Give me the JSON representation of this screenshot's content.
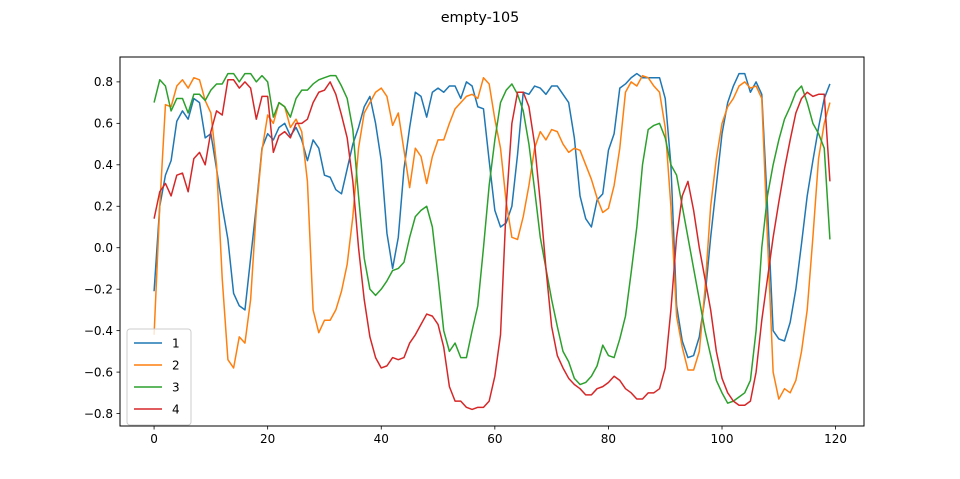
{
  "chart_data": {
    "type": "line",
    "title": "empty-105",
    "xlabel": "",
    "ylabel": "",
    "xlim": [
      -6,
      125
    ],
    "ylim": [
      -0.86,
      0.92
    ],
    "xticks": [
      0,
      20,
      40,
      60,
      80,
      100,
      120
    ],
    "xtick_labels": [
      "0",
      "20",
      "40",
      "60",
      "80",
      "100",
      "120"
    ],
    "yticks": [
      -0.8,
      -0.6,
      -0.4,
      -0.2,
      0.0,
      0.2,
      0.4,
      0.6,
      0.8
    ],
    "ytick_labels": [
      "−0.8",
      "−0.6",
      "−0.4",
      "−0.2",
      "0.0",
      "0.2",
      "0.4",
      "0.6",
      "0.8"
    ],
    "grid": false,
    "legend_position": "lower-left",
    "x": [
      0,
      1,
      2,
      3,
      4,
      5,
      6,
      7,
      8,
      9,
      10,
      11,
      12,
      13,
      14,
      15,
      16,
      17,
      18,
      19,
      20,
      21,
      22,
      23,
      24,
      25,
      26,
      27,
      28,
      29,
      30,
      31,
      32,
      33,
      34,
      35,
      36,
      37,
      38,
      39,
      40,
      41,
      42,
      43,
      44,
      45,
      46,
      47,
      48,
      49,
      50,
      51,
      52,
      53,
      54,
      55,
      56,
      57,
      58,
      59,
      60,
      61,
      62,
      63,
      64,
      65,
      66,
      67,
      68,
      69,
      70,
      71,
      72,
      73,
      74,
      75,
      76,
      77,
      78,
      79,
      80,
      81,
      82,
      83,
      84,
      85,
      86,
      87,
      88,
      89,
      90,
      91,
      92,
      93,
      94,
      95,
      96,
      97,
      98,
      99,
      100,
      101,
      102,
      103,
      104,
      105,
      106,
      107,
      108,
      109,
      110,
      111,
      112,
      113,
      114,
      115,
      116,
      117,
      118,
      119
    ],
    "series": [
      {
        "name": "1",
        "color": "#1f77b4",
        "values": [
          -0.21,
          0.2,
          0.35,
          0.42,
          0.61,
          0.66,
          0.62,
          0.72,
          0.7,
          0.53,
          0.55,
          0.38,
          0.2,
          0.04,
          -0.22,
          -0.28,
          -0.3,
          -0.05,
          0.2,
          0.48,
          0.55,
          0.52,
          0.58,
          0.6,
          0.54,
          0.58,
          0.52,
          0.42,
          0.52,
          0.48,
          0.35,
          0.34,
          0.28,
          0.26,
          0.38,
          0.5,
          0.58,
          0.68,
          0.73,
          0.6,
          0.42,
          0.07,
          -0.1,
          0.05,
          0.38,
          0.58,
          0.75,
          0.73,
          0.63,
          0.75,
          0.77,
          0.75,
          0.78,
          0.78,
          0.72,
          0.8,
          0.78,
          0.68,
          0.67,
          0.42,
          0.18,
          0.1,
          0.12,
          0.2,
          0.45,
          0.75,
          0.74,
          0.78,
          0.77,
          0.74,
          0.78,
          0.78,
          0.74,
          0.7,
          0.53,
          0.25,
          0.14,
          0.1,
          0.23,
          0.26,
          0.47,
          0.55,
          0.77,
          0.79,
          0.82,
          0.84,
          0.82,
          0.82,
          0.82,
          0.82,
          0.72,
          0.4,
          -0.28,
          -0.45,
          -0.53,
          -0.52,
          -0.43,
          -0.24,
          0.05,
          0.3,
          0.55,
          0.7,
          0.78,
          0.84,
          0.84,
          0.75,
          0.8,
          0.74,
          0.2,
          -0.4,
          -0.44,
          -0.45,
          -0.36,
          -0.2,
          0.02,
          0.25,
          0.42,
          0.58,
          0.72,
          0.79
        ]
      },
      {
        "name": "2",
        "color": "#ff7f0e",
        "values": [
          -0.42,
          0.2,
          0.69,
          0.68,
          0.78,
          0.81,
          0.77,
          0.82,
          0.81,
          0.71,
          0.65,
          0.4,
          -0.15,
          -0.54,
          -0.58,
          -0.43,
          -0.46,
          -0.25,
          0.18,
          0.47,
          0.64,
          0.6,
          0.7,
          0.68,
          0.58,
          0.62,
          0.56,
          0.32,
          -0.3,
          -0.41,
          -0.35,
          -0.35,
          -0.3,
          -0.21,
          -0.08,
          0.15,
          0.48,
          0.65,
          0.7,
          0.75,
          0.77,
          0.73,
          0.59,
          0.65,
          0.47,
          0.29,
          0.48,
          0.44,
          0.31,
          0.44,
          0.52,
          0.52,
          0.6,
          0.67,
          0.7,
          0.73,
          0.74,
          0.72,
          0.82,
          0.79,
          0.62,
          0.48,
          0.22,
          0.05,
          0.04,
          0.15,
          0.3,
          0.48,
          0.56,
          0.52,
          0.57,
          0.56,
          0.5,
          0.46,
          0.48,
          0.47,
          0.4,
          0.33,
          0.24,
          0.17,
          0.19,
          0.3,
          0.48,
          0.75,
          0.8,
          0.78,
          0.83,
          0.82,
          0.78,
          0.75,
          0.58,
          0.2,
          -0.33,
          -0.48,
          -0.59,
          -0.59,
          -0.5,
          -0.2,
          0.2,
          0.43,
          0.6,
          0.68,
          0.72,
          0.78,
          0.8,
          0.77,
          0.78,
          0.72,
          0.05,
          -0.6,
          -0.73,
          -0.68,
          -0.7,
          -0.64,
          -0.5,
          -0.3,
          0.05,
          0.43,
          0.6,
          0.7
        ]
      },
      {
        "name": "3",
        "color": "#2ca02c",
        "values": [
          0.7,
          0.81,
          0.78,
          0.66,
          0.72,
          0.72,
          0.65,
          0.74,
          0.74,
          0.71,
          0.76,
          0.79,
          0.79,
          0.84,
          0.84,
          0.8,
          0.84,
          0.84,
          0.8,
          0.83,
          0.8,
          0.63,
          0.7,
          0.68,
          0.63,
          0.72,
          0.76,
          0.76,
          0.79,
          0.81,
          0.82,
          0.83,
          0.83,
          0.78,
          0.72,
          0.57,
          0.25,
          -0.05,
          -0.2,
          -0.23,
          -0.2,
          -0.16,
          -0.11,
          -0.1,
          -0.07,
          0.05,
          0.15,
          0.18,
          0.2,
          0.1,
          -0.14,
          -0.4,
          -0.5,
          -0.46,
          -0.53,
          -0.53,
          -0.4,
          -0.28,
          0.0,
          0.3,
          0.52,
          0.7,
          0.76,
          0.79,
          0.74,
          0.66,
          0.5,
          0.28,
          0.05,
          -0.1,
          -0.25,
          -0.38,
          -0.5,
          -0.55,
          -0.63,
          -0.66,
          -0.65,
          -0.62,
          -0.57,
          -0.47,
          -0.52,
          -0.53,
          -0.44,
          -0.33,
          -0.12,
          0.1,
          0.4,
          0.57,
          0.59,
          0.6,
          0.53,
          0.4,
          0.35,
          0.2,
          0.05,
          -0.1,
          -0.25,
          -0.4,
          -0.52,
          -0.64,
          -0.7,
          -0.75,
          -0.74,
          -0.72,
          -0.7,
          -0.64,
          -0.4,
          0.0,
          0.25,
          0.4,
          0.52,
          0.62,
          0.68,
          0.75,
          0.78,
          0.7,
          0.6,
          0.55,
          0.48,
          0.04
        ]
      },
      {
        "name": "4",
        "color": "#d62728",
        "values": [
          0.14,
          0.27,
          0.31,
          0.25,
          0.35,
          0.36,
          0.27,
          0.43,
          0.46,
          0.4,
          0.56,
          0.66,
          0.64,
          0.81,
          0.81,
          0.77,
          0.8,
          0.77,
          0.62,
          0.73,
          0.73,
          0.46,
          0.54,
          0.56,
          0.53,
          0.6,
          0.6,
          0.62,
          0.7,
          0.75,
          0.76,
          0.8,
          0.74,
          0.64,
          0.53,
          0.32,
          0.0,
          -0.25,
          -0.43,
          -0.53,
          -0.58,
          -0.57,
          -0.53,
          -0.54,
          -0.53,
          -0.46,
          -0.42,
          -0.37,
          -0.32,
          -0.33,
          -0.37,
          -0.48,
          -0.67,
          -0.74,
          -0.74,
          -0.77,
          -0.78,
          -0.77,
          -0.77,
          -0.74,
          -0.62,
          -0.42,
          0.2,
          0.6,
          0.75,
          0.75,
          0.68,
          0.5,
          0.22,
          -0.1,
          -0.38,
          -0.52,
          -0.58,
          -0.63,
          -0.66,
          -0.68,
          -0.71,
          -0.71,
          -0.68,
          -0.67,
          -0.65,
          -0.62,
          -0.64,
          -0.68,
          -0.7,
          -0.73,
          -0.73,
          -0.7,
          -0.7,
          -0.68,
          -0.58,
          -0.3,
          0.05,
          0.25,
          0.32,
          0.18,
          0.0,
          -0.15,
          -0.3,
          -0.5,
          -0.63,
          -0.7,
          -0.74,
          -0.76,
          -0.76,
          -0.74,
          -0.6,
          -0.35,
          -0.15,
          0.05,
          0.22,
          0.38,
          0.52,
          0.65,
          0.72,
          0.75,
          0.73,
          0.74,
          0.74,
          0.32
        ]
      }
    ]
  }
}
